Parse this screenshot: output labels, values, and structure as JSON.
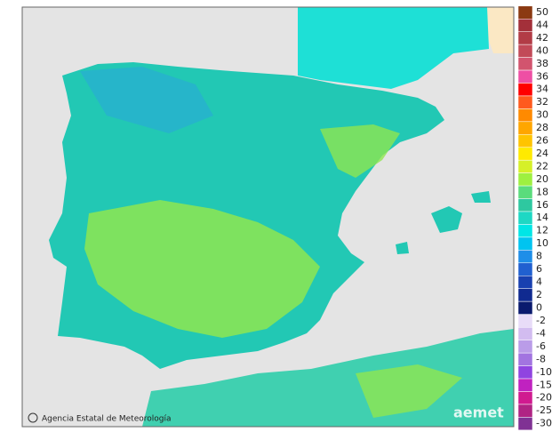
{
  "map": {
    "credit": "Agencia Estatal de Meteorología",
    "logo": "aemet",
    "legend": {
      "warm": [
        {
          "label": 50,
          "color": "#8b3a12"
        },
        {
          "label": 44,
          "color": "#a3303a"
        },
        {
          "label": 42,
          "color": "#b23c46"
        },
        {
          "label": 40,
          "color": "#c24a58"
        },
        {
          "label": 38,
          "color": "#d2546e"
        },
        {
          "label": 36,
          "color": "#ee4fa4"
        },
        {
          "label": 34,
          "color": "#ff0000"
        },
        {
          "label": 32,
          "color": "#ff5a1e"
        },
        {
          "label": 30,
          "color": "#ff8a00"
        },
        {
          "label": 28,
          "color": "#ffa600"
        },
        {
          "label": 26,
          "color": "#ffc400"
        },
        {
          "label": 24,
          "color": "#ffea00"
        },
        {
          "label": 22,
          "color": "#d6f028"
        },
        {
          "label": 20,
          "color": "#9ef040"
        },
        {
          "label": 18,
          "color": "#5adc7c"
        },
        {
          "label": 16,
          "color": "#2ec8a0"
        },
        {
          "label": 14,
          "color": "#1ed8c4"
        },
        {
          "label": 12,
          "color": "#00e6e6"
        },
        {
          "label": 10,
          "color": "#00c4f0"
        },
        {
          "label": 8,
          "color": "#1e8ee8"
        },
        {
          "label": 6,
          "color": "#2060d0"
        },
        {
          "label": 4,
          "color": "#1840b0"
        },
        {
          "label": 2,
          "color": "#102a90"
        },
        {
          "label": 0,
          "color": "#0a1a6e"
        }
      ],
      "cold": [
        {
          "label": -2,
          "color": "#e8dcf8"
        },
        {
          "label": -4,
          "color": "#d2bcf0"
        },
        {
          "label": -6,
          "color": "#ba9ce8"
        },
        {
          "label": -8,
          "color": "#a274e0"
        },
        {
          "label": -10,
          "color": "#9044e0"
        },
        {
          "label": -15,
          "color": "#c022c0"
        },
        {
          "label": -20,
          "color": "#d01a90"
        },
        {
          "label": -25,
          "color": "#b02484"
        },
        {
          "label": -30,
          "color": "#803294"
        }
      ]
    }
  }
}
